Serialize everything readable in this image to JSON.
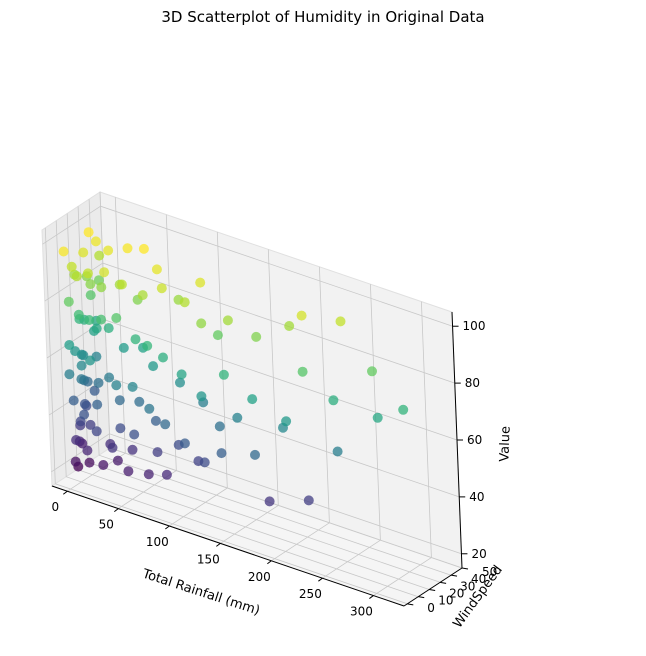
{
  "chart_data": {
    "type": "scatter",
    "projection": "3d",
    "title": "3D Scatterplot of Humidity in Original Data",
    "xlabel": "Total Rainfall (mm)",
    "ylabel": "WindSpeed",
    "zlabel": "Value",
    "xlim": [
      -15,
      330
    ],
    "ylim": [
      -3,
      50
    ],
    "zlim": [
      15,
      105
    ],
    "xticks": [
      0,
      50,
      100,
      150,
      200,
      250,
      300
    ],
    "yticks": [
      0,
      10,
      20,
      30,
      40,
      50
    ],
    "zticks": [
      20,
      40,
      60,
      80,
      100
    ],
    "colormap": "viridis",
    "color_value": "Value",
    "grid": true,
    "points": [
      {
        "x": 0,
        "y": 2,
        "z": 98
      },
      {
        "x": 3,
        "y": 6,
        "z": 92
      },
      {
        "x": 1,
        "y": 10,
        "z": 88
      },
      {
        "x": 5,
        "y": 15,
        "z": 95
      },
      {
        "x": 2,
        "y": 20,
        "z": 85
      },
      {
        "x": 0,
        "y": 25,
        "z": 99
      },
      {
        "x": 4,
        "y": 30,
        "z": 90
      },
      {
        "x": 1,
        "y": 4,
        "z": 80
      },
      {
        "x": 6,
        "y": 8,
        "z": 75
      },
      {
        "x": 2,
        "y": 12,
        "z": 72
      },
      {
        "x": 0,
        "y": 18,
        "z": 70
      },
      {
        "x": 3,
        "y": 22,
        "z": 78
      },
      {
        "x": 5,
        "y": 28,
        "z": 82
      },
      {
        "x": 1,
        "y": 3,
        "z": 65
      },
      {
        "x": 2,
        "y": 7,
        "z": 62
      },
      {
        "x": 4,
        "y": 11,
        "z": 60
      },
      {
        "x": 0,
        "y": 16,
        "z": 58
      },
      {
        "x": 6,
        "y": 21,
        "z": 66
      },
      {
        "x": 3,
        "y": 26,
        "z": 68
      },
      {
        "x": 1,
        "y": 2,
        "z": 55
      },
      {
        "x": 5,
        "y": 9,
        "z": 52
      },
      {
        "x": 2,
        "y": 14,
        "z": 50
      },
      {
        "x": 0,
        "y": 19,
        "z": 48
      },
      {
        "x": 4,
        "y": 24,
        "z": 56
      },
      {
        "x": 1,
        "y": 5,
        "z": 45
      },
      {
        "x": 3,
        "y": 13,
        "z": 42
      },
      {
        "x": 0,
        "y": 17,
        "z": 40
      },
      {
        "x": 2,
        "y": 23,
        "z": 44
      },
      {
        "x": 6,
        "y": 6,
        "z": 38
      },
      {
        "x": 1,
        "y": 10,
        "z": 35
      },
      {
        "x": 4,
        "y": 3,
        "z": 32
      },
      {
        "x": 2,
        "y": 8,
        "z": 30
      },
      {
        "x": 0,
        "y": 12,
        "z": 28
      },
      {
        "x": 5,
        "y": 1,
        "z": 25
      },
      {
        "x": 3,
        "y": 5,
        "z": 22
      },
      {
        "x": 10,
        "y": 4,
        "z": 90
      },
      {
        "x": 12,
        "y": 14,
        "z": 85
      },
      {
        "x": 8,
        "y": 24,
        "z": 97
      },
      {
        "x": 15,
        "y": 9,
        "z": 74
      },
      {
        "x": 11,
        "y": 19,
        "z": 68
      },
      {
        "x": 9,
        "y": 6,
        "z": 58
      },
      {
        "x": 14,
        "y": 16,
        "z": 50
      },
      {
        "x": 13,
        "y": 3,
        "z": 42
      },
      {
        "x": 10,
        "y": 11,
        "z": 36
      },
      {
        "x": 16,
        "y": 2,
        "z": 30
      },
      {
        "x": 12,
        "y": 7,
        "z": 24
      },
      {
        "x": 20,
        "y": 5,
        "z": 92
      },
      {
        "x": 25,
        "y": 12,
        "z": 86
      },
      {
        "x": 22,
        "y": 22,
        "z": 96
      },
      {
        "x": 28,
        "y": 8,
        "z": 76
      },
      {
        "x": 24,
        "y": 18,
        "z": 70
      },
      {
        "x": 21,
        "y": 3,
        "z": 62
      },
      {
        "x": 27,
        "y": 14,
        "z": 54
      },
      {
        "x": 23,
        "y": 6,
        "z": 46
      },
      {
        "x": 26,
        "y": 2,
        "z": 38
      },
      {
        "x": 30,
        "y": 10,
        "z": 32
      },
      {
        "x": 29,
        "y": 4,
        "z": 26
      },
      {
        "x": 35,
        "y": 6,
        "z": 94
      },
      {
        "x": 40,
        "y": 15,
        "z": 88
      },
      {
        "x": 38,
        "y": 25,
        "z": 98
      },
      {
        "x": 42,
        "y": 9,
        "z": 78
      },
      {
        "x": 36,
        "y": 20,
        "z": 64
      },
      {
        "x": 45,
        "y": 4,
        "z": 56
      },
      {
        "x": 39,
        "y": 12,
        "z": 48
      },
      {
        "x": 44,
        "y": 7,
        "z": 40
      },
      {
        "x": 41,
        "y": 2,
        "z": 34
      },
      {
        "x": 37,
        "y": 10,
        "z": 27
      },
      {
        "x": 50,
        "y": 8,
        "z": 91
      },
      {
        "x": 55,
        "y": 17,
        "z": 84
      },
      {
        "x": 52,
        "y": 27,
        "z": 99
      },
      {
        "x": 58,
        "y": 11,
        "z": 72
      },
      {
        "x": 54,
        "y": 21,
        "z": 66
      },
      {
        "x": 60,
        "y": 5,
        "z": 57
      },
      {
        "x": 56,
        "y": 14,
        "z": 49
      },
      {
        "x": 62,
        "y": 3,
        "z": 41
      },
      {
        "x": 53,
        "y": 9,
        "z": 33
      },
      {
        "x": 57,
        "y": 1,
        "z": 28
      },
      {
        "x": 68,
        "y": 10,
        "z": 89
      },
      {
        "x": 72,
        "y": 20,
        "z": 96
      },
      {
        "x": 75,
        "y": 6,
        "z": 73
      },
      {
        "x": 70,
        "y": 15,
        "z": 63
      },
      {
        "x": 78,
        "y": 3,
        "z": 52
      },
      {
        "x": 74,
        "y": 12,
        "z": 45
      },
      {
        "x": 80,
        "y": 7,
        "z": 36
      },
      {
        "x": 76,
        "y": 2,
        "z": 29
      },
      {
        "x": 85,
        "y": 12,
        "z": 93
      },
      {
        "x": 90,
        "y": 22,
        "z": 87
      },
      {
        "x": 88,
        "y": 8,
        "z": 70
      },
      {
        "x": 95,
        "y": 16,
        "z": 60
      },
      {
        "x": 92,
        "y": 4,
        "z": 48
      },
      {
        "x": 98,
        "y": 10,
        "z": 40
      },
      {
        "x": 94,
        "y": 2,
        "z": 31
      },
      {
        "x": 105,
        "y": 14,
        "z": 90
      },
      {
        "x": 110,
        "y": 24,
        "z": 95
      },
      {
        "x": 108,
        "y": 6,
        "z": 67
      },
      {
        "x": 115,
        "y": 18,
        "z": 55
      },
      {
        "x": 112,
        "y": 3,
        "z": 44
      },
      {
        "x": 118,
        "y": 9,
        "z": 37
      },
      {
        "x": 125,
        "y": 10,
        "z": 86
      },
      {
        "x": 130,
        "y": 20,
        "z": 80
      },
      {
        "x": 128,
        "y": 5,
        "z": 62
      },
      {
        "x": 135,
        "y": 14,
        "z": 50
      },
      {
        "x": 132,
        "y": 2,
        "z": 40
      },
      {
        "x": 145,
        "y": 16,
        "z": 88
      },
      {
        "x": 150,
        "y": 6,
        "z": 72
      },
      {
        "x": 155,
        "y": 12,
        "z": 56
      },
      {
        "x": 148,
        "y": 3,
        "z": 45
      },
      {
        "x": 168,
        "y": 20,
        "z": 84
      },
      {
        "x": 175,
        "y": 8,
        "z": 66
      },
      {
        "x": 180,
        "y": 4,
        "z": 48
      },
      {
        "x": 190,
        "y": 30,
        "z": 88
      },
      {
        "x": 200,
        "y": 12,
        "z": 58
      },
      {
        "x": 195,
        "y": 2,
        "z": 34
      },
      {
        "x": 205,
        "y": 28,
        "z": 94
      },
      {
        "x": 210,
        "y": 6,
        "z": 63
      },
      {
        "x": 215,
        "y": 18,
        "z": 78
      },
      {
        "x": 225,
        "y": 10,
        "z": 36
      },
      {
        "x": 230,
        "y": 40,
        "z": 92
      },
      {
        "x": 240,
        "y": 22,
        "z": 70
      },
      {
        "x": 250,
        "y": 15,
        "z": 55
      },
      {
        "x": 265,
        "y": 35,
        "z": 80
      },
      {
        "x": 280,
        "y": 25,
        "z": 68
      },
      {
        "x": 300,
        "y": 30,
        "z": 72
      }
    ]
  }
}
